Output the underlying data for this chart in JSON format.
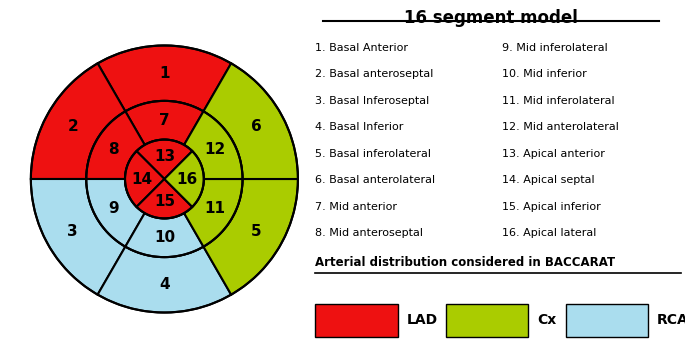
{
  "title": "16 segment model",
  "colors": {
    "LAD": "#ee1111",
    "Cx": "#aacc00",
    "RCA": "#aaddee"
  },
  "left_labels": [
    "1. Basal Anterior",
    "2. Basal anteroseptal",
    "3. Basal Inferoseptal",
    "4. Basal Inferior",
    "5. Basal inferolateral",
    "6. Basal anterolateral",
    "7. Mid anterior",
    "8. Mid anteroseptal"
  ],
  "right_labels": [
    "9. Mid inferolateral",
    "10. Mid inferior",
    "11. Mid inferolateral",
    "12. Mid anterolateral",
    "13. Apical anterior",
    "14. Apical septal",
    "15. Apical inferior",
    "16. Apical lateral"
  ],
  "legend_title": "Arterial distribution considered in BACCARAT",
  "legend_items": [
    {
      "label": "LAD",
      "color": "#ee1111"
    },
    {
      "label": "Cx",
      "color": "#aacc00"
    },
    {
      "label": "RCA",
      "color": "#aaddee"
    }
  ],
  "outer_segments": [
    {
      "id": 1,
      "color": "LAD",
      "t0": 60,
      "t1": 120
    },
    {
      "id": 2,
      "color": "LAD",
      "t0": 120,
      "t1": 180
    },
    {
      "id": 3,
      "color": "RCA",
      "t0": 180,
      "t1": 240
    },
    {
      "id": 4,
      "color": "RCA",
      "t0": 240,
      "t1": 300
    },
    {
      "id": 5,
      "color": "Cx",
      "t0": 300,
      "t1": 360
    },
    {
      "id": 6,
      "color": "Cx",
      "t0": 0,
      "t1": 60
    }
  ],
  "mid_segments": [
    {
      "id": 7,
      "color": "LAD",
      "t0": 60,
      "t1": 120
    },
    {
      "id": 8,
      "color": "LAD",
      "t0": 120,
      "t1": 180
    },
    {
      "id": 9,
      "color": "RCA",
      "t0": 180,
      "t1": 240
    },
    {
      "id": 10,
      "color": "RCA",
      "t0": 240,
      "t1": 300
    },
    {
      "id": 11,
      "color": "Cx",
      "t0": 300,
      "t1": 360
    },
    {
      "id": 12,
      "color": "Cx",
      "t0": 0,
      "t1": 60
    }
  ],
  "apical_segments": [
    {
      "id": 13,
      "color": "LAD",
      "t0": 45,
      "t1": 135
    },
    {
      "id": 14,
      "color": "LAD",
      "t0": 135,
      "t1": 225
    },
    {
      "id": 15,
      "color": "LAD",
      "t0": 225,
      "t1": 315
    },
    {
      "id": 16,
      "color": "Cx",
      "t0": 315,
      "t1": 405
    }
  ],
  "R_outer": 1.0,
  "R_mid_outer": 0.585,
  "R_apical_outer": 0.295
}
